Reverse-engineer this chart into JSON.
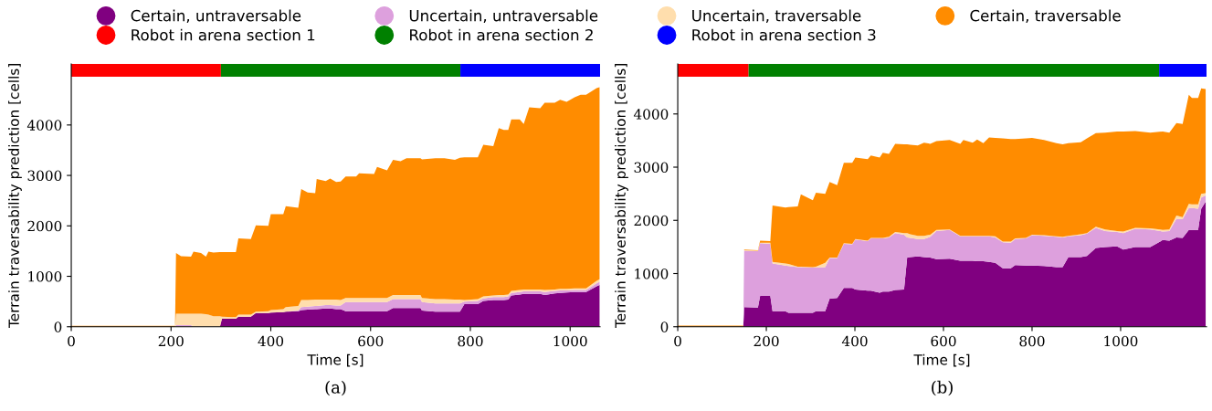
{
  "chart_data": [
    {
      "type": "area",
      "stacked": true,
      "xlabel": "Time [s]",
      "ylabel": "Terrain traversability prediction [cells]",
      "annotations": [
        "(a)"
      ],
      "legend": "top",
      "grid": false,
      "x": [
        0,
        208,
        210,
        220,
        240,
        245,
        260,
        270,
        275,
        285,
        298,
        302,
        330,
        335,
        360,
        370,
        395,
        400,
        425,
        430,
        455,
        461,
        474,
        489,
        492,
        510,
        519,
        531,
        540,
        550,
        571,
        577,
        607,
        613,
        633,
        645,
        660,
        672,
        700,
        703,
        730,
        748,
        769,
        779,
        788,
        815,
        826,
        846,
        857,
        867,
        876,
        882,
        899,
        907,
        918,
        940,
        949,
        969,
        980,
        993,
        1009,
        1021,
        1032,
        1053,
        1059
      ],
      "series": [
        {
          "name": "Certain, untraversable",
          "color": "#800080",
          "values": [
            0,
            0,
            0,
            0,
            0,
            0,
            0,
            0,
            0,
            0,
            0,
            160,
            160,
            200,
            200,
            270,
            270,
            280,
            290,
            300,
            310,
            330,
            340,
            350,
            350,
            360,
            360,
            350,
            350,
            310,
            310,
            310,
            310,
            310,
            310,
            370,
            370,
            370,
            370,
            320,
            300,
            300,
            300,
            300,
            450,
            450,
            510,
            530,
            530,
            530,
            540,
            620,
            640,
            650,
            650,
            650,
            630,
            660,
            670,
            680,
            690,
            690,
            690,
            800,
            830
          ]
        },
        {
          "name": "Uncertain, untraversable",
          "color": "#dda0dd",
          "values": [
            0,
            0,
            30,
            30,
            30,
            0,
            0,
            0,
            0,
            0,
            0,
            0,
            0,
            0,
            0,
            0,
            0,
            0,
            0,
            0,
            10,
            60,
            60,
            60,
            60,
            70,
            70,
            70,
            70,
            180,
            180,
            180,
            180,
            180,
            180,
            180,
            180,
            180,
            180,
            170,
            160,
            160,
            160,
            160,
            50,
            60,
            50,
            60,
            60,
            60,
            60,
            50,
            50,
            50,
            50,
            50,
            60,
            50,
            50,
            40,
            40,
            40,
            40,
            60,
            60
          ]
        },
        {
          "name": "Uncertain, traversable",
          "color": "#ffdead",
          "values": [
            0,
            0,
            230,
            230,
            230,
            260,
            260,
            250,
            240,
            210,
            210,
            40,
            30,
            40,
            40,
            30,
            40,
            50,
            60,
            90,
            90,
            140,
            130,
            130,
            130,
            110,
            110,
            120,
            110,
            80,
            80,
            80,
            80,
            80,
            80,
            80,
            80,
            80,
            80,
            80,
            90,
            90,
            80,
            80,
            30,
            40,
            40,
            30,
            40,
            40,
            40,
            40,
            40,
            40,
            40,
            40,
            40,
            30,
            30,
            30,
            30,
            30,
            30,
            50,
            50
          ]
        },
        {
          "name": "Certain, traversable",
          "color": "#ff8c00",
          "values": [
            20,
            20,
            1200,
            1140,
            1130,
            1230,
            1200,
            1140,
            1250,
            1260,
            1270,
            1280,
            1290,
            1510,
            1500,
            1710,
            1690,
            1900,
            1880,
            2000,
            1950,
            2200,
            2130,
            2110,
            2390,
            2350,
            2400,
            2330,
            2350,
            2410,
            2410,
            2470,
            2460,
            2600,
            2530,
            2680,
            2650,
            2710,
            2710,
            2750,
            2790,
            2790,
            2770,
            2810,
            2830,
            2810,
            3010,
            2960,
            3310,
            3270,
            3260,
            3400,
            3380,
            3280,
            3610,
            3590,
            3710,
            3700,
            3750,
            3710,
            3790,
            3840,
            3840,
            3820,
            3810
          ]
        }
      ],
      "bands": [
        {
          "axis": "x",
          "from": 0,
          "to": 300,
          "label": "Robot in arena section 1",
          "color": "#ff0000"
        },
        {
          "axis": "x",
          "from": 300,
          "to": 780,
          "label": "Robot in arena section 2",
          "color": "#008000"
        },
        {
          "axis": "x",
          "from": 780,
          "to": 1060,
          "label": "Robot in arena section 3",
          "color": "#0000ff"
        }
      ],
      "xlim": [
        0,
        1060
      ],
      "ylim": [
        0,
        5210
      ],
      "xticks": [
        0,
        200,
        400,
        600,
        800,
        1000
      ],
      "yticks": [
        0,
        1000,
        2000,
        3000,
        4000
      ]
    },
    {
      "type": "area",
      "stacked": true,
      "xlabel": "Time [s]",
      "ylabel": "Terrain traversability prediction [cells]",
      "annotations": [
        "(b)"
      ],
      "legend": "top",
      "grid": false,
      "x": [
        0,
        148,
        150,
        181,
        186,
        209,
        214,
        243,
        250,
        271,
        278,
        305,
        312,
        333,
        343,
        360,
        375,
        394,
        401,
        429,
        436,
        456,
        463,
        477,
        491,
        511,
        518,
        525,
        542,
        556,
        570,
        584,
        614,
        638,
        645,
        666,
        676,
        690,
        703,
        717,
        734,
        752,
        762,
        786,
        800,
        827,
        855,
        869,
        882,
        910,
        924,
        944,
        965,
        992,
        1006,
        1033,
        1067,
        1095,
        1110,
        1126,
        1140,
        1154,
        1161,
        1175,
        1182,
        1192
      ],
      "series": [
        {
          "name": "Certain, untraversable",
          "color": "#800080",
          "values": [
            0,
            0,
            370,
            360,
            580,
            580,
            290,
            290,
            260,
            260,
            260,
            260,
            290,
            290,
            530,
            540,
            730,
            730,
            700,
            680,
            680,
            640,
            660,
            660,
            690,
            700,
            1300,
            1310,
            1320,
            1310,
            1300,
            1270,
            1280,
            1240,
            1240,
            1240,
            1230,
            1230,
            1220,
            1200,
            1100,
            1100,
            1160,
            1150,
            1150,
            1140,
            1120,
            1120,
            1310,
            1310,
            1330,
            1480,
            1500,
            1510,
            1450,
            1500,
            1500,
            1630,
            1620,
            1680,
            1670,
            1820,
            1820,
            1820,
            2220,
            2350
          ]
        },
        {
          "name": "Uncertain, untraversable",
          "color": "#dda0dd",
          "values": [
            0,
            0,
            1060,
            1060,
            990,
            980,
            900,
            860,
            880,
            860,
            860,
            850,
            820,
            830,
            760,
            750,
            830,
            820,
            940,
            930,
            980,
            1020,
            1000,
            1020,
            1070,
            1030,
            380,
            360,
            330,
            340,
            390,
            530,
            540,
            460,
            460,
            460,
            470,
            470,
            480,
            480,
            490,
            480,
            490,
            510,
            570,
            570,
            570,
            560,
            390,
            410,
            420,
            380,
            300,
            270,
            310,
            340,
            330,
            160,
            180,
            350,
            350,
            410,
            410,
            400,
            210,
            120
          ]
        },
        {
          "name": "Uncertain, traversable",
          "color": "#ffdead",
          "values": [
            0,
            0,
            10,
            10,
            10,
            20,
            30,
            40,
            40,
            10,
            10,
            10,
            20,
            80,
            10,
            10,
            10,
            10,
            10,
            10,
            10,
            10,
            10,
            10,
            20,
            30,
            80,
            70,
            60,
            60,
            40,
            20,
            10,
            10,
            10,
            10,
            10,
            10,
            10,
            20,
            10,
            20,
            10,
            10,
            10,
            10,
            10,
            10,
            10,
            20,
            10,
            20,
            30,
            20,
            30,
            20,
            20,
            30,
            30,
            60,
            40,
            80,
            70,
            80,
            70,
            40
          ]
        },
        {
          "name": "Certain, traversable",
          "color": "#ff8c00",
          "values": [
            20,
            20,
            10,
            10,
            40,
            30,
            1060,
            1050,
            1070,
            1130,
            1360,
            1260,
            1390,
            1300,
            1420,
            1360,
            1510,
            1520,
            1530,
            1530,
            1550,
            1510,
            1600,
            1560,
            1660,
            1670,
            1670,
            1680,
            1700,
            1750,
            1710,
            1670,
            1680,
            1730,
            1800,
            1750,
            1810,
            1740,
            1850,
            1850,
            1940,
            1930,
            1870,
            1870,
            1820,
            1790,
            1750,
            1740,
            1740,
            1730,
            1780,
            1760,
            1820,
            1870,
            1880,
            1820,
            1800,
            1850,
            1820,
            1740,
            1750,
            2050,
            2000,
            2000,
            1980,
            1960
          ]
        }
      ],
      "bands": [
        {
          "axis": "x",
          "from": 0,
          "to": 160,
          "color": "#ff0000"
        },
        {
          "axis": "x",
          "from": 160,
          "to": 1087,
          "color": "#008000"
        },
        {
          "axis": "x",
          "from": 1087,
          "to": 1194,
          "color": "#0000ff"
        }
      ],
      "xlim": [
        0,
        1194
      ],
      "ylim": [
        0,
        4940
      ],
      "xticks": [
        0,
        200,
        400,
        600,
        800,
        1000
      ],
      "yticks": [
        0,
        1000,
        2000,
        3000,
        4000
      ]
    }
  ]
}
